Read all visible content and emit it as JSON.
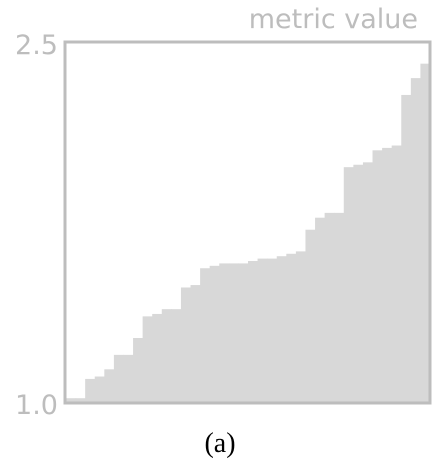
{
  "chart_data": {
    "type": "area",
    "ylabel": "metric value",
    "yticks": [
      "2.5",
      "1.0"
    ],
    "ylim": [
      1.0,
      2.5
    ],
    "grid": false,
    "caption": "(a)",
    "values": [
      1.02,
      1.02,
      1.1,
      1.11,
      1.14,
      1.2,
      1.2,
      1.27,
      1.36,
      1.37,
      1.39,
      1.39,
      1.48,
      1.49,
      1.56,
      1.57,
      1.58,
      1.58,
      1.58,
      1.59,
      1.6,
      1.6,
      1.61,
      1.62,
      1.63,
      1.72,
      1.77,
      1.79,
      1.79,
      1.98,
      1.99,
      2.0,
      2.05,
      2.06,
      2.07,
      2.28,
      2.35,
      2.41
    ]
  },
  "colors": {
    "fill": "#d8d8d8",
    "frame": "#bdbdbd",
    "axis_text": "#bdbdbd",
    "caption": "#000000"
  }
}
